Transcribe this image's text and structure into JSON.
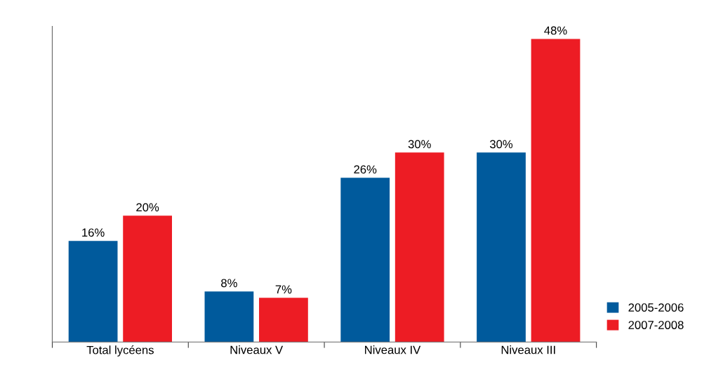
{
  "chart_data": {
    "type": "bar",
    "categories": [
      "Total lycéens",
      "Niveaux V",
      "Niveaux IV",
      "Niveaux III"
    ],
    "series": [
      {
        "name": "2005-2006",
        "color": "#005a9c",
        "values": [
          16,
          8,
          26,
          30
        ],
        "value_labels": [
          "16%",
          "8%",
          "26%",
          "30%"
        ]
      },
      {
        "name": "2007-2008",
        "color": "#ed1c24",
        "values": [
          20,
          7,
          30,
          48
        ],
        "value_labels": [
          "20%",
          "7%",
          "30%",
          "48%"
        ]
      }
    ],
    "ylim": [
      0,
      50
    ],
    "tick_labels": "x",
    "grid": false,
    "legend": "bottom right"
  }
}
